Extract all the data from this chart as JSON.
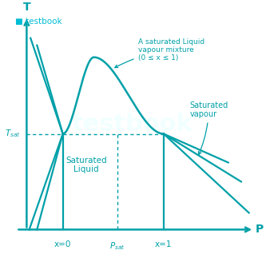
{
  "bg_color": "#ffffff",
  "teal_color": "#00a0a8",
  "logo_color": "#00bcd4",
  "logo_icon_color": "#1a2e44",
  "annotations": {
    "sat_liquid": "Saturated\nLiquid",
    "sat_vapour": "Saturated\nvapour",
    "mixture": "A saturated Liquid\nvapour mixture\n(0 ≤ x ≤ 1)"
  },
  "x0_label": "x=0",
  "x1_label": "x=1",
  "psat_label": "P_sat",
  "tsat_label": "T_sat",
  "axis_T": "T",
  "axis_P": "P",
  "watermark": "testbook",
  "logo_text": "testbook"
}
